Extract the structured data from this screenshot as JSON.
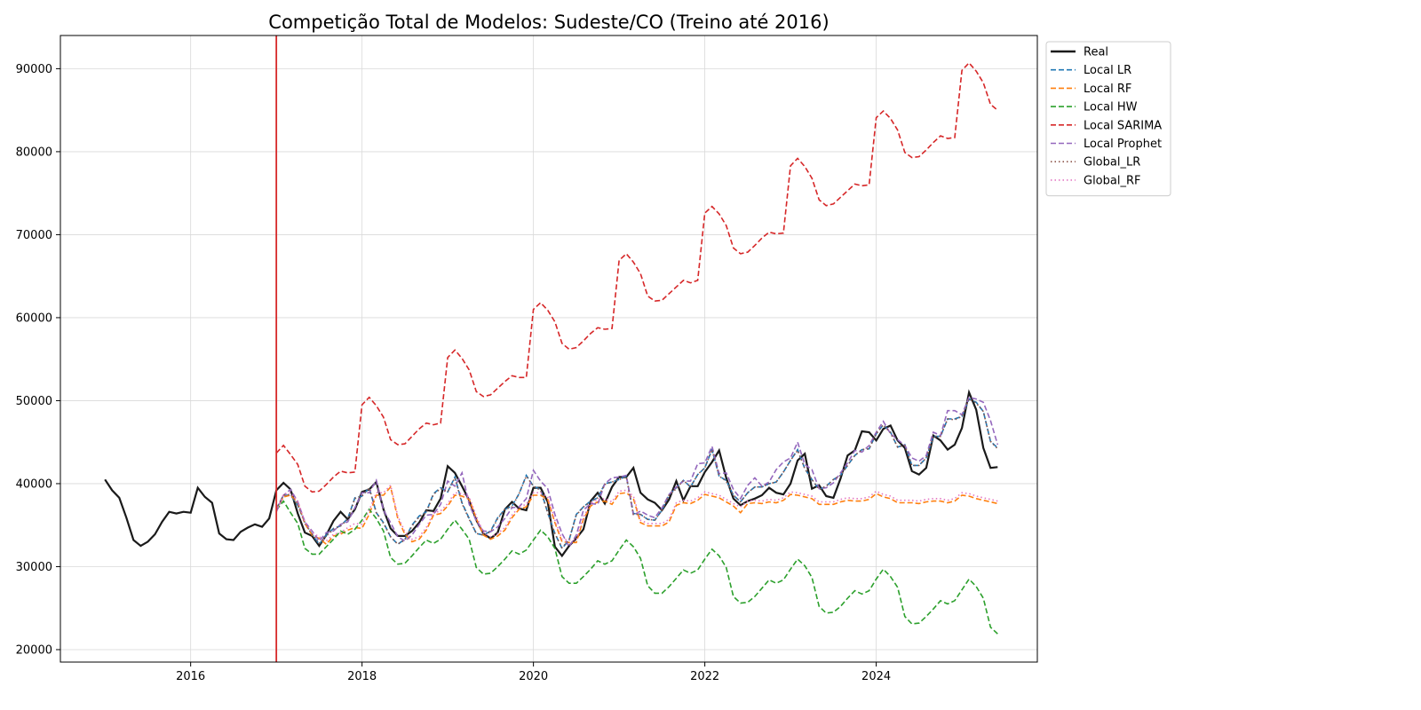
{
  "chart_data": {
    "type": "line",
    "title": "Competição Total de Modelos: Sudeste/CO (Treino até 2016)",
    "xlabel": "",
    "ylabel": "",
    "xlim": [
      2014.48,
      2025.88
    ],
    "ylim": [
      18500,
      94000
    ],
    "x_ticks": [
      2016,
      2018,
      2020,
      2022,
      2024
    ],
    "y_ticks": [
      20000,
      30000,
      40000,
      50000,
      60000,
      70000,
      80000,
      90000
    ],
    "grid": true,
    "legend_position": "outside-top-right",
    "split_line": {
      "x": 2017.0,
      "color": "#d62728"
    },
    "series": [
      {
        "name": "Real",
        "color": "#1a1a1a",
        "dash": "solid",
        "start": 2015.0,
        "values": [
          40500,
          39200,
          38300,
          35900,
          33200,
          32500,
          33000,
          33900,
          35400,
          36600,
          36400,
          36600,
          36500,
          39500,
          38400,
          37700,
          34000,
          33300,
          33200,
          34200,
          34700,
          35100,
          34800,
          35800,
          39200,
          40100,
          39300,
          36400,
          34100,
          33700,
          32500,
          33800,
          35500,
          36600,
          35700,
          36900,
          39000,
          39300,
          40200,
          36900,
          34600,
          33700,
          33700,
          34300,
          35300,
          36800,
          36700,
          38200,
          42100,
          41300,
          39700,
          38000,
          35600,
          34000,
          33400,
          34100,
          36900,
          37800,
          37000,
          36800,
          39500,
          39500,
          37800,
          32400,
          31300,
          32500,
          33400,
          34500,
          37900,
          38900,
          37600,
          39600,
          40800,
          40800,
          41900,
          38900,
          38100,
          37700,
          36800,
          38100,
          40300,
          38000,
          39700,
          39700,
          41400,
          42600,
          44000,
          40700,
          38200,
          37400,
          37900,
          38200,
          38600,
          39500,
          38900,
          38700,
          40000,
          42800,
          43600,
          39400,
          39800,
          38500,
          38300,
          40600,
          43400,
          44000,
          46300,
          46200,
          45200,
          46600,
          47000,
          45200,
          44300,
          41500,
          41100,
          41900,
          45800,
          45200,
          44100,
          44700,
          46700,
          51000,
          48900,
          44300,
          41900,
          42000
        ]
      },
      {
        "name": "Local LR",
        "color": "#1f77b4",
        "dash": "dashed",
        "start": 2017.0,
        "values": [
          37000,
          38600,
          38600,
          37400,
          35300,
          33900,
          32700,
          33800,
          34600,
          34900,
          35800,
          38300,
          38500,
          39500,
          36500,
          35300,
          33600,
          32700,
          33300,
          35000,
          36100,
          36600,
          38800,
          39500,
          39000,
          40800,
          37700,
          35800,
          34000,
          33800,
          34300,
          35900,
          36900,
          37300,
          38800,
          41000,
          39700,
          39300,
          36500,
          34000,
          32200,
          33200,
          36300,
          37200,
          37900,
          38300,
          40000,
          40200,
          40500,
          40900,
          36400,
          36300,
          35700,
          35600,
          36800,
          38700,
          39500,
          40400,
          39600,
          41100,
          41900,
          44100,
          40900,
          40400,
          38600,
          37800,
          38900,
          39600,
          39600,
          40000,
          40200,
          41400,
          42800,
          44100,
          41800,
          40500,
          39300,
          39700,
          40500,
          41000,
          42200,
          43400,
          44100,
          44200,
          46000,
          47100,
          46200,
          44400,
          44700,
          42200,
          42200,
          43100,
          45700,
          45700,
          47800,
          47800,
          48100,
          50200,
          49800,
          48700,
          45100,
          44300
        ]
      },
      {
        "name": "Local RF",
        "color": "#ff7f0e",
        "dash": "dashed",
        "start": 2017.0,
        "values": [
          36800,
          38400,
          38600,
          37700,
          35200,
          33800,
          33400,
          32700,
          33700,
          33900,
          34400,
          34700,
          34600,
          36300,
          38600,
          38600,
          39600,
          35800,
          33900,
          33000,
          33300,
          34400,
          36200,
          36400,
          37300,
          38600,
          38500,
          38100,
          35800,
          33800,
          33300,
          33700,
          34400,
          35900,
          36900,
          37200,
          38600,
          38600,
          38100,
          35300,
          33000,
          32900,
          32900,
          35700,
          37300,
          37800,
          37900,
          37500,
          38800,
          38900,
          38200,
          35300,
          34900,
          34900,
          34900,
          35400,
          37400,
          37700,
          37600,
          38000,
          38700,
          38500,
          38300,
          37800,
          37300,
          36500,
          37600,
          37700,
          37600,
          37800,
          37700,
          38000,
          38700,
          38600,
          38400,
          38200,
          37500,
          37500,
          37500,
          37800,
          38000,
          37900,
          37900,
          38100,
          38800,
          38400,
          38200,
          37700,
          37700,
          37700,
          37600,
          37800,
          37900,
          37900,
          37700,
          37900,
          38600,
          38500,
          38200,
          38000,
          37800,
          37600
        ]
      },
      {
        "name": "Local HW",
        "color": "#2ca02c",
        "dash": "dashed",
        "start": 2017.0,
        "values": [
          36800,
          37900,
          36500,
          35200,
          32200,
          31500,
          31500,
          32400,
          33300,
          34300,
          33900,
          34500,
          35600,
          36900,
          35800,
          34300,
          31100,
          30300,
          30400,
          31300,
          32300,
          33200,
          32800,
          33300,
          34500,
          35600,
          34500,
          33300,
          29900,
          29100,
          29200,
          30000,
          30900,
          31900,
          31500,
          32000,
          33200,
          34400,
          33600,
          32200,
          28800,
          28000,
          28000,
          28800,
          29700,
          30700,
          30300,
          30700,
          32000,
          33200,
          32400,
          31000,
          27700,
          26800,
          26800,
          27600,
          28600,
          29600,
          29200,
          29600,
          30900,
          32100,
          31300,
          29900,
          26400,
          25600,
          25700,
          26400,
          27400,
          28400,
          28000,
          28400,
          29700,
          30900,
          30100,
          28700,
          25200,
          24400,
          24500,
          25200,
          26200,
          27100,
          26700,
          27100,
          28500,
          29700,
          28800,
          27500,
          24000,
          23100,
          23200,
          24000,
          24900,
          25900,
          25500,
          25900,
          27200,
          28500,
          27600,
          26200,
          22700,
          21900
        ]
      },
      {
        "name": "Local SARIMA",
        "color": "#d62728",
        "dash": "dashed",
        "start": 2017.0,
        "values": [
          43700,
          44600,
          43500,
          42300,
          39700,
          39000,
          39100,
          39900,
          40800,
          41500,
          41300,
          41400,
          49500,
          50400,
          49400,
          48000,
          45300,
          44700,
          44800,
          45700,
          46600,
          47300,
          47100,
          47300,
          55200,
          56100,
          55100,
          53700,
          51100,
          50500,
          50700,
          51500,
          52300,
          53000,
          52800,
          52800,
          61000,
          61800,
          60900,
          59500,
          56900,
          56200,
          56400,
          57200,
          58100,
          58800,
          58600,
          58700,
          66900,
          67700,
          66700,
          65300,
          62600,
          62000,
          62100,
          62900,
          63700,
          64500,
          64200,
          64500,
          72600,
          73400,
          72500,
          71100,
          68400,
          67700,
          67900,
          68700,
          69600,
          70300,
          70100,
          70200,
          78300,
          79200,
          78200,
          76800,
          74200,
          73500,
          73700,
          74500,
          75300,
          76100,
          75900,
          76000,
          84100,
          84900,
          84000,
          82600,
          79900,
          79300,
          79400,
          80200,
          81100,
          81900,
          81600,
          81700,
          89800,
          90700,
          89700,
          88300,
          85700,
          85000
        ]
      },
      {
        "name": "Local Prophet",
        "color": "#9467bd",
        "dash": "dashed",
        "start": 2017.0,
        "values": [
          36600,
          38600,
          39300,
          37800,
          35400,
          34300,
          33100,
          34100,
          34300,
          35100,
          35400,
          37100,
          38900,
          38900,
          40400,
          36800,
          35300,
          33600,
          33100,
          33800,
          35100,
          36200,
          36300,
          37500,
          40300,
          39700,
          41300,
          37500,
          35500,
          34300,
          34200,
          34800,
          35800,
          37100,
          37200,
          38200,
          41600,
          40300,
          39400,
          36300,
          34000,
          32400,
          33800,
          36800,
          37600,
          37500,
          40000,
          40700,
          40800,
          41000,
          36200,
          36700,
          36200,
          35900,
          37100,
          38700,
          39600,
          40300,
          40300,
          42400,
          42500,
          44500,
          41200,
          41300,
          39300,
          38200,
          39800,
          40700,
          39700,
          40200,
          41700,
          42600,
          43100,
          45000,
          42300,
          41700,
          39400,
          39500,
          40100,
          41300,
          42500,
          44000,
          43800,
          44600,
          46200,
          47500,
          46000,
          45300,
          44600,
          43100,
          42700,
          43400,
          46200,
          45800,
          48800,
          48800,
          48300,
          50400,
          50200,
          49800,
          47600,
          44700
        ]
      },
      {
        "name": "Global_LR",
        "color": "#8c564b",
        "dash": "dotted",
        "start": 2017.0,
        "values": [
          36900,
          38600,
          38700,
          37500,
          35200,
          33900,
          32800,
          33700,
          34500,
          34900,
          35700,
          38200,
          38500,
          39500,
          36500,
          35200,
          33600,
          32700,
          33200,
          34900,
          36000,
          36500,
          38700,
          39400,
          39000,
          40700,
          37600,
          35700,
          34000,
          33800,
          34200,
          35800,
          36900,
          37200,
          38800,
          40900,
          39700,
          39200,
          36500,
          34000,
          32300,
          33200,
          36200,
          37200,
          37800,
          38300,
          39900,
          40200,
          40500,
          40800,
          36300,
          36300,
          35700,
          35600,
          36800,
          38600,
          39400,
          40400,
          39600,
          41100,
          41900,
          44100,
          40900,
          40300,
          38600,
          37800,
          38900,
          39600,
          39600,
          40000,
          40200,
          41400,
          42800,
          44000,
          41800,
          40500,
          39300,
          39700,
          40500,
          41000,
          42200,
          43400,
          44100,
          44200,
          46000,
          47100,
          46100,
          44400,
          44600,
          42200,
          42200,
          43100,
          45700,
          45700,
          47800,
          47700,
          48100,
          50200,
          49700,
          48700,
          45100,
          44200
        ]
      },
      {
        "name": "Global_RF",
        "color": "#e377c2",
        "dash": "dotted",
        "start": 2017.0,
        "values": [
          36700,
          38700,
          38900,
          37900,
          35400,
          34100,
          33600,
          33100,
          33900,
          34100,
          34700,
          35200,
          35100,
          36800,
          38900,
          38900,
          39800,
          36100,
          34200,
          33300,
          33600,
          34700,
          36500,
          36700,
          37600,
          38900,
          38800,
          38400,
          36100,
          34100,
          33600,
          34000,
          34700,
          36200,
          37200,
          37500,
          38900,
          38900,
          38400,
          35600,
          33300,
          33200,
          33200,
          36000,
          37600,
          38100,
          38200,
          37800,
          39100,
          39200,
          38500,
          35600,
          35200,
          35200,
          35200,
          35700,
          37700,
          38000,
          37900,
          38300,
          39000,
          38800,
          38600,
          38100,
          37600,
          37200,
          37900,
          38000,
          37900,
          38100,
          38000,
          38300,
          39000,
          38900,
          38700,
          38500,
          37800,
          37800,
          37800,
          38100,
          38300,
          38200,
          38200,
          38400,
          39100,
          38700,
          38500,
          38000,
          38000,
          38000,
          37900,
          38100,
          38200,
          38200,
          38000,
          38200,
          38900,
          38800,
          38500,
          38300,
          38100,
          37900
        ]
      }
    ]
  }
}
